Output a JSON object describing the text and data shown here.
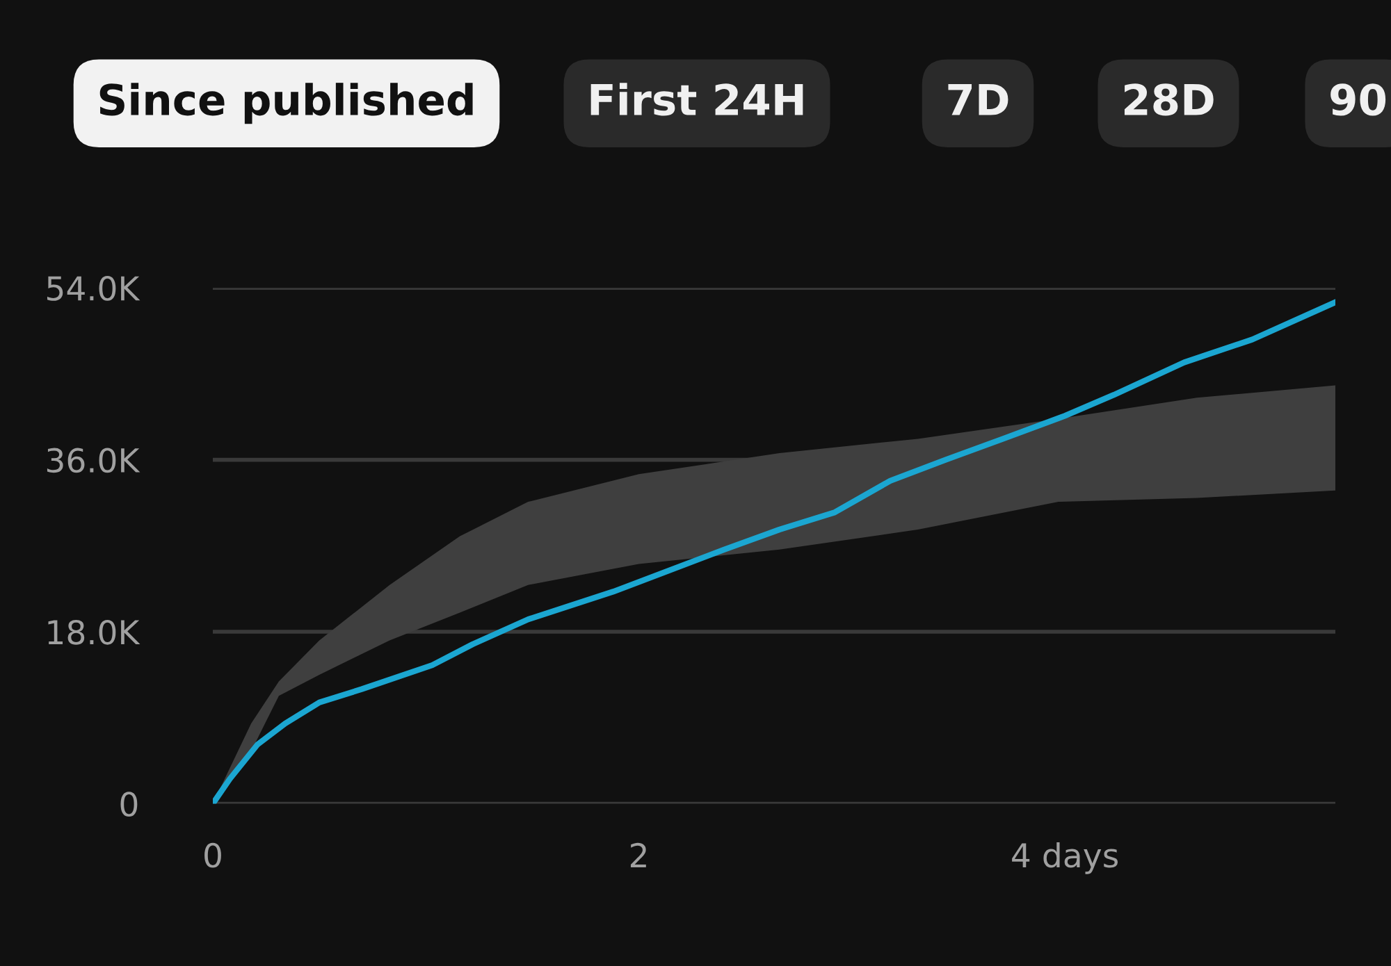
{
  "chart_data": {
    "type": "line",
    "annotations": [
      "Since published",
      "First 24H",
      "7D",
      "28D",
      "90"
    ],
    "x": [
      0,
      0.08,
      0.21,
      0.34,
      0.5,
      0.7,
      1.03,
      1.22,
      1.48,
      1.88,
      2.14,
      2.4,
      2.66,
      2.92,
      3.18,
      3.44,
      3.71,
      4.0,
      4.23,
      4.56,
      4.88,
      5.27
    ],
    "series": [
      {
        "color": "#1ba6d1",
        "values": [
          0,
          2600,
          6200,
          8400,
          10600,
          12000,
          14500,
          16700,
          19300,
          22200,
          24400,
          26600,
          28700,
          30500,
          33800,
          36000,
          38200,
          40600,
          42800,
          46200,
          48600,
          52500
        ]
      },
      {
        "type": "area",
        "color": "#3f3f3f",
        "x": [
          0,
          0.18,
          0.31,
          0.5,
          0.83,
          1.16,
          1.48,
          2.0,
          2.66,
          3.31,
          3.97,
          4.62,
          5.27
        ],
        "values": [
          null,
          null,
          null,
          null,
          null,
          null,
          null,
          null,
          null,
          null,
          null,
          null,
          null
        ],
        "lower": [
          0,
          5500,
          11300,
          13500,
          17100,
          20000,
          22900,
          25100,
          26600,
          28700,
          31600,
          32000,
          32800
        ],
        "upper": [
          0,
          8400,
          12800,
          17100,
          22900,
          28000,
          31600,
          34500,
          36700,
          38200,
          40300,
          42500,
          43800
        ]
      }
    ],
    "xlim": [
      0,
      5.27
    ],
    "ylim": [
      0,
      54000
    ],
    "xticks": [
      0,
      2,
      {
        "value": 4,
        "label": "4 days"
      }
    ],
    "yticks": [
      0,
      {
        "value": 18000,
        "label": "18.0K"
      },
      {
        "value": 36000,
        "label": "36.0K"
      },
      {
        "value": 54000,
        "label": "54.0K"
      }
    ],
    "grid": "y"
  }
}
